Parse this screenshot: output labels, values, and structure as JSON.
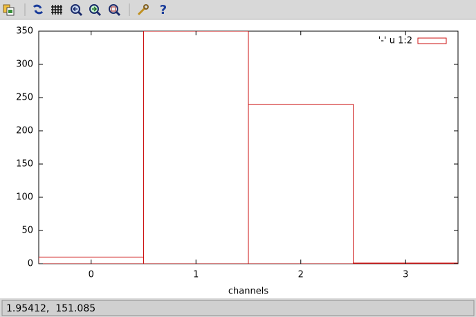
{
  "chart_data": {
    "type": "bar",
    "x": [
      0,
      1,
      2,
      3
    ],
    "series": [
      {
        "name": "'-' u 1:2",
        "color": "#cc1111",
        "values": [
          10,
          350,
          240,
          1
        ]
      }
    ],
    "bar_width": 1,
    "xlim": [
      -0.5,
      3.5
    ],
    "xticks": [
      0,
      1,
      2,
      3
    ],
    "ylim": [
      0,
      350
    ],
    "yticks": [
      0,
      50,
      100,
      150,
      200,
      250,
      300,
      350
    ],
    "x_label": "channels",
    "grid": false,
    "legend": "top-right"
  },
  "status_bar": "1.95412,  151.085"
}
